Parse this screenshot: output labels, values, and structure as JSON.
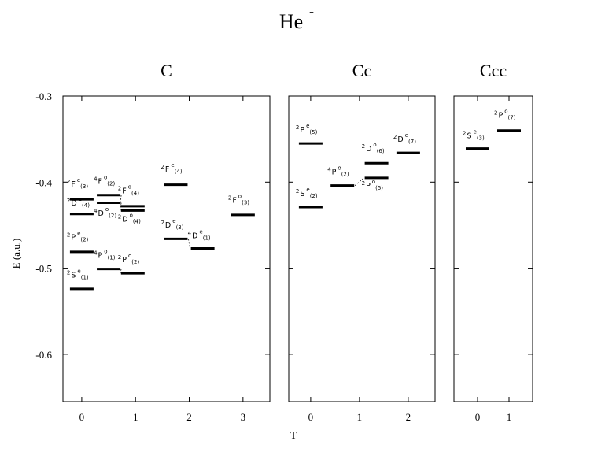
{
  "title": "He",
  "title_sup": "-",
  "ylabel": "E (a.u.)",
  "xlabel": "T",
  "chart_data": {
    "type": "scatter",
    "title": "He-",
    "ylabel": "E (a.u.)",
    "xlabel": "T",
    "ylim": [
      -0.655,
      -0.3
    ],
    "yticks": [
      -0.3,
      -0.4,
      -0.5,
      -0.6
    ],
    "panels": [
      {
        "name": "C",
        "xlim": [
          -0.35,
          3.5
        ],
        "xticks": [
          0,
          1,
          2,
          3
        ],
        "levels": [
          {
            "x": 0.0,
            "energy": -0.42,
            "label": "2F e(3)",
            "lab": [
              {
                "x": 0.0,
                "y": -0.405,
                "L": "F",
                "p": "e",
                "n": "3"
              }
            ]
          },
          {
            "x": 0.0,
            "energy": -0.437,
            "label": "2D e(4)",
            "lab": [
              {
                "x": 0.0,
                "y": -0.427,
                "L": "D",
                "p": "e",
                "n": "4"
              }
            ]
          },
          {
            "x": 0.0,
            "energy": -0.481,
            "label": "2P e(2)",
            "lab": [
              {
                "x": 0.0,
                "y": -0.467,
                "L": "P",
                "p": "e",
                "n": "2"
              }
            ]
          },
          {
            "x": 0.0,
            "energy": -0.524,
            "label": "2S e(1)",
            "lab": [
              {
                "x": 0.0,
                "y": -0.511,
                "L": "S",
                "p": "e",
                "n": "1"
              }
            ]
          },
          {
            "x": 0.5,
            "energy": -0.415,
            "label": "4F o(2)",
            "lab": [
              {
                "x": 0.5,
                "y": -0.402,
                "L": "F",
                "p": "o",
                "n": "2",
                "m": "4"
              }
            ]
          },
          {
            "x": 0.5,
            "energy": -0.424,
            "label": "4D o(2)",
            "lab": [
              {
                "x": 0.5,
                "y": -0.439,
                "L": "D",
                "p": "o",
                "n": "2",
                "m": "4"
              }
            ]
          },
          {
            "x": 0.5,
            "energy": -0.501,
            "label": "4P o(1)",
            "lab": [
              {
                "x": 0.5,
                "y": -0.488,
                "L": "P",
                "p": "o",
                "n": "1",
                "m": "4"
              }
            ]
          },
          {
            "x": 0.95,
            "energy": -0.428,
            "label": "2F o(4)",
            "lab": [
              {
                "x": 0.95,
                "y": -0.413,
                "L": "F",
                "p": "o",
                "n": "4"
              }
            ]
          },
          {
            "x": 0.95,
            "energy": -0.433,
            "label": "2D o(4)",
            "lab": [
              {
                "x": 0.95,
                "y": -0.446,
                "L": "D",
                "p": "o",
                "n": "4"
              }
            ]
          },
          {
            "x": 0.95,
            "energy": -0.506,
            "label": "2P o(2)",
            "lab": [
              {
                "x": 0.95,
                "y": -0.493,
                "L": "P",
                "p": "o",
                "n": "2"
              }
            ]
          },
          {
            "x": 1.75,
            "energy": -0.403,
            "label": "2F e(4)",
            "lab": [
              {
                "x": 1.75,
                "y": -0.388,
                "L": "F",
                "p": "e",
                "n": "4"
              }
            ]
          },
          {
            "x": 1.75,
            "energy": -0.466,
            "label": "2D e(3)",
            "lab": [
              {
                "x": 1.75,
                "y": -0.453,
                "L": "D",
                "p": "e",
                "n": "3"
              }
            ]
          },
          {
            "x": 2.25,
            "energy": -0.477,
            "label": "4D e(1)",
            "lab": [
              {
                "x": 2.25,
                "y": -0.465,
                "L": "D",
                "p": "e",
                "n": "1",
                "m": "4"
              }
            ]
          },
          {
            "x": 3.0,
            "energy": -0.438,
            "label": "2F o(3)",
            "lab": [
              {
                "x": 3.0,
                "y": -0.424,
                "L": "F",
                "p": "o",
                "n": "3"
              }
            ]
          }
        ],
        "links": [
          [
            0.5,
            -0.415,
            0.95,
            -0.428
          ],
          [
            0.5,
            -0.424,
            0.95,
            -0.433
          ],
          [
            0.5,
            -0.501,
            0.95,
            -0.506
          ],
          [
            1.75,
            -0.466,
            2.25,
            -0.477
          ]
        ]
      },
      {
        "name": "Cc",
        "xlim": [
          -0.45,
          2.55
        ],
        "xticks": [
          0,
          1,
          2
        ],
        "levels": [
          {
            "x": 0.0,
            "energy": -0.355,
            "label": "2P e(5)",
            "lab": [
              {
                "x": 0.0,
                "y": -0.342,
                "L": "P",
                "p": "e",
                "n": "5"
              }
            ]
          },
          {
            "x": 0.0,
            "energy": -0.429,
            "label": "2S e(2)",
            "lab": [
              {
                "x": 0.0,
                "y": -0.416,
                "L": "S",
                "p": "e",
                "n": "2"
              }
            ]
          },
          {
            "x": 0.65,
            "energy": -0.404,
            "label": "4P o(2)",
            "lab": [
              {
                "x": 0.65,
                "y": -0.391,
                "L": "P",
                "p": "o",
                "n": "2",
                "m": "4"
              }
            ]
          },
          {
            "x": 1.35,
            "energy": -0.378,
            "label": "2D o(6)",
            "lab": [
              {
                "x": 1.35,
                "y": -0.364,
                "L": "D",
                "p": "o",
                "n": "6"
              }
            ]
          },
          {
            "x": 1.35,
            "energy": -0.395,
            "label": "2P o(5)",
            "lab": [
              {
                "x": 1.35,
                "y": -0.407,
                "L": "P",
                "p": "o",
                "n": "5"
              }
            ]
          },
          {
            "x": 2.0,
            "energy": -0.366,
            "label": "2D e(7)",
            "lab": [
              {
                "x": 2.0,
                "y": -0.353,
                "L": "D",
                "p": "e",
                "n": "7"
              }
            ]
          }
        ],
        "links": [
          [
            0.65,
            -0.404,
            1.35,
            -0.395
          ]
        ]
      },
      {
        "name": "Ccc",
        "xlim": [
          -0.75,
          1.75
        ],
        "xticks": [
          0,
          1
        ],
        "levels": [
          {
            "x": 0.0,
            "energy": -0.361,
            "label": "2S e(3)",
            "lab": [
              {
                "x": 0.0,
                "y": -0.349,
                "L": "S",
                "p": "e",
                "n": "3"
              }
            ]
          },
          {
            "x": 1.0,
            "energy": -0.34,
            "label": "2P o(7)",
            "lab": [
              {
                "x": 1.0,
                "y": -0.325,
                "L": "P",
                "p": "o",
                "n": "7"
              }
            ]
          }
        ],
        "links": []
      }
    ]
  }
}
